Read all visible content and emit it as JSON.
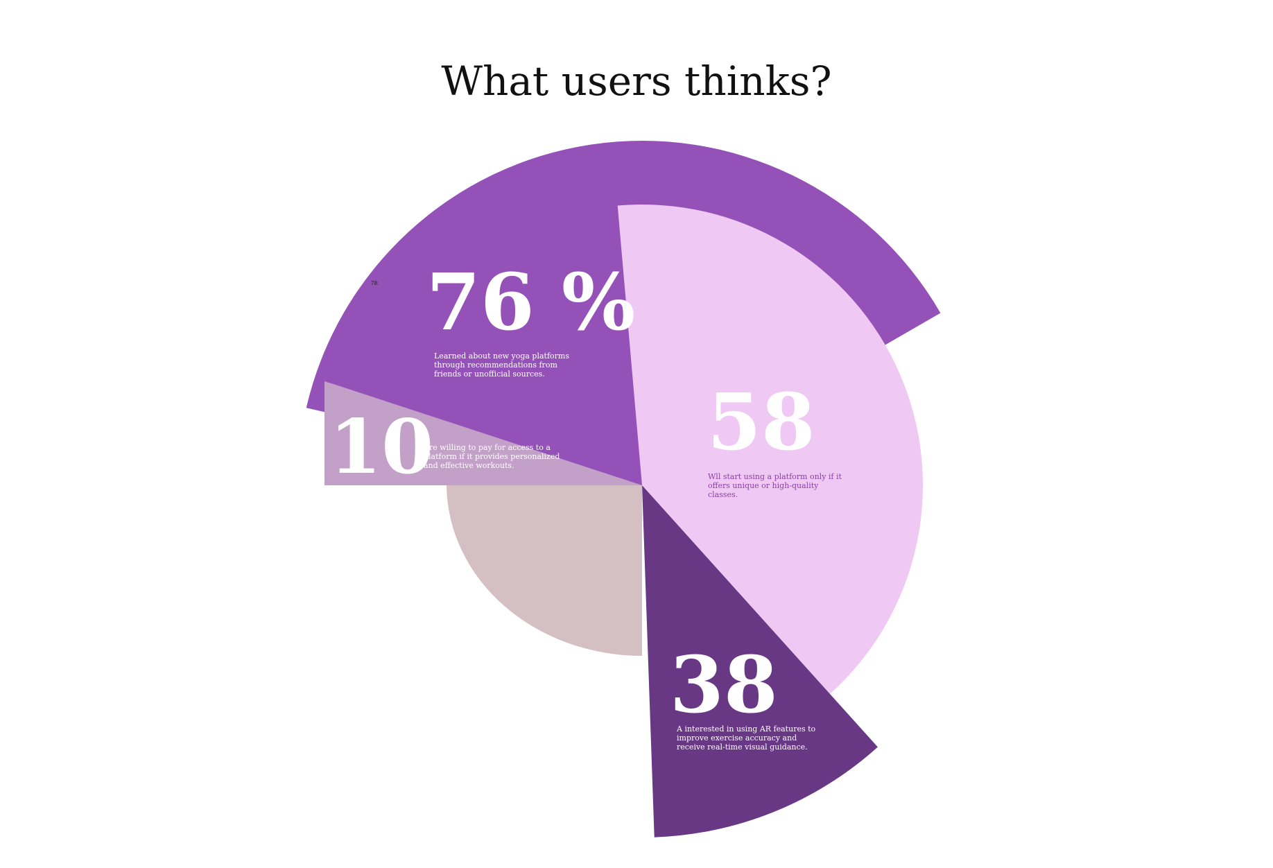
{
  "chart_data": {
    "type": "pie",
    "title": "What users thinks?",
    "series": [
      {
        "value": 76,
        "value_label": "76 %",
        "description": [
          "Learned about new yoga platforms",
          "through recommendations from",
          "friends or unofficial sources."
        ],
        "color": "#9452b8"
      },
      {
        "value": 58,
        "value_label": "58",
        "description": [
          "Wll start using a platform only if it",
          "offers unique or high-quality",
          "classes."
        ],
        "color": "#efc8f4"
      },
      {
        "value": 38,
        "value_label": "38",
        "description": [
          "A interested in using AR features to",
          "improve exercise accuracy and",
          "receive real-time visual guidance."
        ],
        "color": "#683884"
      },
      {
        "value": 10,
        "value_label": "10",
        "description": [
          "Are willing to pay for access to a",
          "platform if it provides personalized",
          "and effective workouts."
        ],
        "color": "#c3a0c8"
      }
    ],
    "annotations": [
      "78:"
    ],
    "legend": "none",
    "base_color": "#d4c0c2"
  }
}
